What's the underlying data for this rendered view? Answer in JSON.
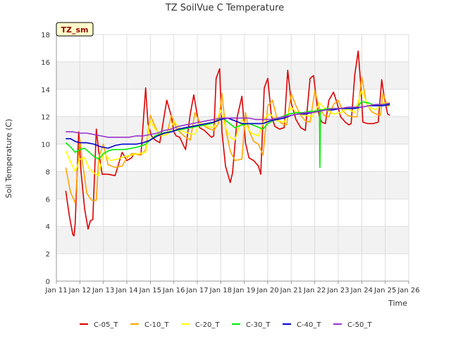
{
  "chart_data": {
    "type": "line",
    "title": "TZ SoilVue C Temperature",
    "xlabel": "Time",
    "ylabel": "Soil Temperature (C)",
    "badge": "TZ_sm",
    "x_tick_labels": [
      "Jan 11",
      "Jan 12",
      "Jan 13",
      "Jan 14",
      "Jan 15",
      "Jan 16",
      "Jan 17",
      "Jan 18",
      "Jan 19",
      "Jan 20",
      "Jan 21",
      "Jan 22",
      "Jan 23",
      "Jan 24",
      "Jan 25",
      "Jan 26"
    ],
    "x_tick_days": [
      11,
      12,
      13,
      14,
      15,
      16,
      17,
      18,
      19,
      20,
      21,
      22,
      23,
      24,
      25,
      26
    ],
    "xlim": [
      11,
      26
    ],
    "ylim": [
      0,
      18
    ],
    "y_ticks": [
      0,
      2,
      4,
      6,
      8,
      10,
      12,
      14,
      16,
      18
    ],
    "grid": true,
    "legend_position": "bottom",
    "series": [
      {
        "name": "C-05_T",
        "color": "#dd0000",
        "x": [
          11.4,
          11.55,
          11.7,
          11.75,
          11.8,
          11.95,
          12.05,
          12.2,
          12.35,
          12.45,
          12.55,
          12.7,
          12.8,
          12.95,
          13.05,
          13.2,
          13.5,
          13.8,
          14.0,
          14.2,
          14.3,
          14.6,
          14.8,
          14.9,
          15.05,
          15.2,
          15.4,
          15.7,
          15.9,
          16.0,
          16.1,
          16.25,
          16.5,
          16.7,
          16.85,
          17.0,
          17.1,
          17.3,
          17.6,
          17.7,
          17.8,
          17.95,
          18.05,
          18.2,
          18.4,
          18.5,
          18.7,
          18.9,
          19.05,
          19.2,
          19.4,
          19.6,
          19.7,
          19.85,
          20.0,
          20.15,
          20.3,
          20.5,
          20.7,
          20.85,
          21.0,
          21.2,
          21.4,
          21.6,
          21.8,
          21.95,
          22.1,
          22.2,
          22.3,
          22.45,
          22.6,
          22.8,
          22.95,
          23.1,
          23.3,
          23.45,
          23.55,
          23.7,
          23.85,
          23.95,
          24.05,
          24.25,
          24.5,
          24.7,
          24.85,
          24.95,
          25.1,
          25.2
        ],
        "y": [
          6.6,
          4.8,
          3.4,
          3.3,
          4.2,
          10.9,
          8.0,
          5.3,
          3.8,
          4.4,
          4.5,
          11.1,
          9.5,
          7.8,
          7.8,
          7.8,
          7.7,
          9.4,
          8.8,
          9.0,
          9.3,
          9.2,
          14.1,
          11.5,
          10.6,
          10.3,
          10.1,
          13.2,
          12.0,
          10.9,
          10.6,
          10.5,
          9.6,
          12.2,
          13.6,
          12.1,
          11.2,
          11.0,
          10.5,
          10.6,
          14.8,
          15.5,
          10.9,
          8.4,
          7.2,
          7.9,
          12.0,
          13.5,
          10.1,
          9.0,
          8.8,
          8.4,
          7.8,
          14.1,
          14.8,
          12.1,
          11.3,
          11.1,
          11.2,
          15.4,
          13.0,
          11.8,
          11.2,
          11.0,
          14.8,
          15.0,
          12.8,
          12.0,
          11.6,
          11.5,
          13.2,
          13.8,
          13.0,
          12.0,
          11.6,
          11.4,
          11.5,
          15.0,
          16.8,
          14.5,
          11.6,
          11.5,
          11.5,
          11.6,
          14.7,
          13.5,
          12.2,
          12.1
        ]
      },
      {
        "name": "C-10_T",
        "color": "#ffa500",
        "x": [
          11.4,
          11.6,
          11.8,
          12.0,
          12.1,
          12.3,
          12.5,
          12.7,
          12.8,
          13.0,
          13.2,
          13.5,
          13.8,
          14.0,
          14.2,
          14.4,
          14.6,
          14.8,
          15.0,
          15.2,
          15.4,
          15.7,
          15.9,
          16.1,
          16.3,
          16.5,
          16.7,
          16.9,
          17.1,
          17.4,
          17.7,
          17.9,
          18.05,
          18.2,
          18.4,
          18.6,
          18.9,
          19.05,
          19.2,
          19.4,
          19.6,
          19.8,
          20.0,
          20.2,
          20.4,
          20.6,
          20.8,
          21.0,
          21.2,
          21.4,
          21.6,
          21.8,
          22.0,
          22.2,
          22.4,
          22.6,
          22.8,
          23.0,
          23.2,
          23.4,
          23.6,
          23.8,
          24.0,
          24.2,
          24.4,
          24.6,
          24.8,
          24.9,
          25.1,
          25.2
        ],
        "y": [
          8.3,
          6.5,
          5.7,
          10.4,
          8.8,
          6.4,
          5.9,
          5.9,
          9.0,
          10.0,
          8.5,
          8.3,
          8.4,
          9.0,
          9.3,
          9.3,
          9.2,
          9.6,
          12.1,
          11.3,
          10.6,
          10.7,
          12.1,
          11.2,
          10.8,
          10.5,
          10.3,
          12.3,
          11.6,
          11.2,
          11.0,
          11.5,
          13.7,
          11.2,
          9.5,
          8.8,
          8.9,
          12.3,
          11.0,
          10.2,
          10.0,
          9.2,
          12.8,
          13.2,
          11.8,
          11.5,
          11.4,
          13.7,
          12.8,
          12.1,
          11.7,
          11.6,
          13.9,
          12.6,
          12.1,
          12.0,
          12.9,
          13.2,
          12.4,
          12.1,
          12.0,
          12.0,
          14.9,
          13.0,
          12.4,
          12.2,
          12.1,
          13.7,
          12.8,
          12.8
        ]
      },
      {
        "name": "C-20_T",
        "color": "#ffff00",
        "x": [
          11.4,
          11.6,
          11.8,
          12.0,
          12.2,
          12.4,
          12.6,
          12.8,
          13.0,
          13.3,
          13.6,
          13.9,
          14.2,
          14.5,
          14.8,
          15.0,
          15.2,
          15.5,
          15.8,
          16.0,
          16.3,
          16.6,
          16.9,
          17.1,
          17.4,
          17.7,
          18.0,
          18.2,
          18.4,
          18.6,
          18.9,
          19.1,
          19.3,
          19.6,
          19.9,
          20.1,
          20.4,
          20.7,
          21.0,
          21.3,
          21.6,
          21.9,
          22.2,
          22.5,
          22.8,
          23.1,
          23.4,
          23.7,
          24.0,
          24.3,
          24.6,
          24.9,
          25.2
        ],
        "y": [
          9.5,
          8.7,
          8.0,
          8.9,
          9.0,
          8.2,
          7.9,
          7.7,
          9.4,
          8.8,
          8.9,
          9.1,
          9.2,
          9.3,
          9.4,
          11.7,
          11.1,
          10.6,
          10.8,
          11.7,
          11.0,
          10.8,
          10.7,
          11.6,
          11.3,
          11.2,
          12.5,
          11.2,
          10.5,
          10.3,
          11.8,
          11.3,
          10.8,
          10.6,
          12.0,
          12.2,
          11.7,
          11.6,
          12.7,
          12.2,
          12.1,
          12.0,
          13.0,
          12.5,
          12.2,
          12.3,
          12.6,
          12.3,
          13.9,
          12.7,
          12.5,
          13.0,
          13.0
        ]
      },
      {
        "name": "C-30_T",
        "color": "#00ee00",
        "x": [
          11.4,
          11.6,
          11.8,
          12.0,
          12.2,
          12.4,
          12.6,
          12.8,
          13.0,
          13.2,
          13.4,
          13.6,
          13.9,
          14.2,
          14.5,
          14.8,
          15.0,
          15.2,
          15.5,
          15.8,
          16.1,
          16.4,
          16.7,
          17.0,
          17.3,
          17.6,
          17.9,
          18.1,
          18.3,
          18.6,
          18.9,
          19.2,
          19.5,
          19.8,
          20.0,
          20.3,
          20.6,
          20.9,
          21.2,
          21.5,
          21.8,
          22.0,
          22.2,
          22.22,
          22.24,
          22.26,
          22.3,
          22.6,
          22.9,
          23.2,
          23.5,
          23.8,
          24.0,
          24.3,
          24.6,
          24.9,
          25.2
        ],
        "y": [
          10.1,
          9.8,
          9.4,
          9.6,
          9.7,
          9.4,
          9.1,
          8.9,
          9.3,
          9.5,
          9.6,
          9.6,
          9.6,
          9.7,
          9.8,
          10.0,
          10.3,
          10.6,
          10.8,
          10.9,
          11.0,
          11.1,
          11.2,
          11.3,
          11.4,
          11.5,
          11.8,
          11.9,
          11.6,
          11.2,
          11.4,
          11.5,
          11.3,
          11.1,
          11.5,
          11.8,
          12.0,
          12.2,
          12.3,
          12.3,
          12.4,
          12.4,
          12.5,
          8.3,
          12.5,
          12.5,
          12.5,
          12.6,
          12.6,
          12.6,
          12.6,
          12.7,
          13.1,
          13.0,
          12.8,
          12.9,
          12.9
        ]
      },
      {
        "name": "C-40_T",
        "color": "#0000cc",
        "x": [
          11.4,
          11.6,
          11.8,
          12.0,
          12.3,
          12.6,
          12.9,
          13.2,
          13.5,
          13.8,
          14.1,
          14.4,
          14.7,
          15.0,
          15.3,
          15.6,
          15.9,
          16.2,
          16.5,
          16.8,
          17.1,
          17.4,
          17.7,
          18.0,
          18.3,
          18.6,
          18.9,
          19.2,
          19.5,
          19.8,
          20.1,
          20.4,
          20.7,
          21.0,
          21.3,
          21.6,
          21.9,
          22.2,
          22.5,
          22.8,
          23.1,
          23.4,
          23.7,
          24.0,
          24.3,
          24.6,
          24.9,
          25.2
        ],
        "y": [
          10.4,
          10.4,
          10.2,
          10.1,
          10.1,
          10.0,
          9.8,
          9.7,
          9.9,
          10.0,
          10.0,
          10.0,
          10.1,
          10.3,
          10.6,
          10.8,
          10.9,
          11.1,
          11.2,
          11.3,
          11.4,
          11.5,
          11.6,
          11.8,
          11.9,
          11.7,
          11.5,
          11.5,
          11.5,
          11.5,
          11.7,
          11.8,
          11.9,
          12.1,
          12.2,
          12.2,
          12.3,
          12.4,
          12.5,
          12.5,
          12.6,
          12.6,
          12.6,
          12.7,
          12.8,
          12.8,
          12.8,
          12.9
        ]
      },
      {
        "name": "C-50_T",
        "color": "#9933cc",
        "x": [
          11.4,
          11.7,
          12.0,
          12.3,
          12.6,
          12.9,
          13.2,
          13.5,
          13.8,
          14.1,
          14.4,
          14.7,
          15.0,
          15.3,
          15.6,
          15.9,
          16.2,
          16.5,
          16.8,
          17.1,
          17.4,
          17.7,
          18.0,
          18.3,
          18.6,
          18.9,
          19.2,
          19.5,
          19.8,
          20.1,
          20.4,
          20.7,
          21.0,
          21.3,
          21.6,
          21.9,
          22.2,
          22.5,
          22.8,
          23.1,
          23.4,
          23.7,
          24.0,
          24.3,
          24.6,
          24.9,
          25.2
        ],
        "y": [
          10.9,
          10.9,
          10.8,
          10.8,
          10.7,
          10.6,
          10.5,
          10.5,
          10.5,
          10.5,
          10.6,
          10.6,
          10.7,
          10.8,
          11.0,
          11.1,
          11.3,
          11.4,
          11.5,
          11.6,
          11.7,
          11.8,
          11.9,
          11.9,
          11.9,
          11.9,
          11.9,
          11.8,
          11.8,
          11.8,
          11.9,
          12.0,
          12.1,
          12.2,
          12.3,
          12.3,
          12.4,
          12.5,
          12.6,
          12.6,
          12.7,
          12.7,
          12.7,
          12.8,
          12.9,
          12.9,
          13.0
        ]
      }
    ]
  }
}
